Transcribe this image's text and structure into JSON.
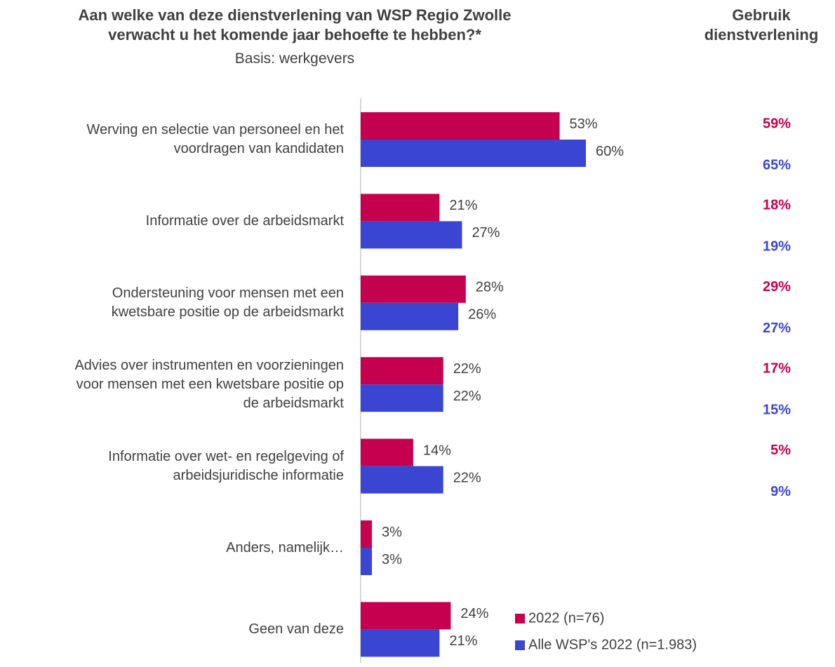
{
  "chart_data": {
    "type": "hbar",
    "title": "Aan welke van deze dienstverlening van WSP Regio Zwolle\nverwacht u het komende jaar behoefte te hebben?*",
    "subtitle": "Basis: werkgevers",
    "categories": [
      "Werving en selectie van personeel en het\nvoordragen van kandidaten",
      "Informatie over de arbeidsmarkt",
      "Ondersteuning voor mensen met een\nkwetsbare positie op de arbeidsmarkt",
      "Advies over instrumenten en voorzieningen\nvoor mensen met een kwetsbare positie op\nde arbeidsmarkt",
      "Informatie over wet- en regelgeving of\narbeidsjuridische informatie",
      "Anders, namelijk…",
      "Geen van deze"
    ],
    "xlim": [
      0,
      100
    ],
    "series": [
      {
        "name": "2022 (n=76)",
        "color": "#c4004f",
        "values": [
          53,
          21,
          28,
          22,
          14,
          3,
          24
        ],
        "value_labels": [
          "53%",
          "21%",
          "28%",
          "22%",
          "14%",
          "3%",
          "24%"
        ]
      },
      {
        "name": "Alle WSP's 2022 (n=1.983)",
        "color": "#3a46d1",
        "values": [
          60,
          27,
          26,
          22,
          22,
          3,
          21
        ],
        "value_labels": [
          "60%",
          "27%",
          "26%",
          "22%",
          "22%",
          "3%",
          "21%"
        ]
      }
    ],
    "usage": {
      "title": "Gebruik\ndienstverlening",
      "series": [
        {
          "color": "#c4004f",
          "values": [
            59,
            18,
            29,
            17,
            5
          ],
          "value_labels": [
            "59%",
            "18%",
            "29%",
            "17%",
            "5%"
          ]
        },
        {
          "color": "#3a46d1",
          "values": [
            65,
            19,
            27,
            15,
            9
          ],
          "value_labels": [
            "65%",
            "19%",
            "27%",
            "15%",
            "9%"
          ]
        }
      ]
    }
  }
}
